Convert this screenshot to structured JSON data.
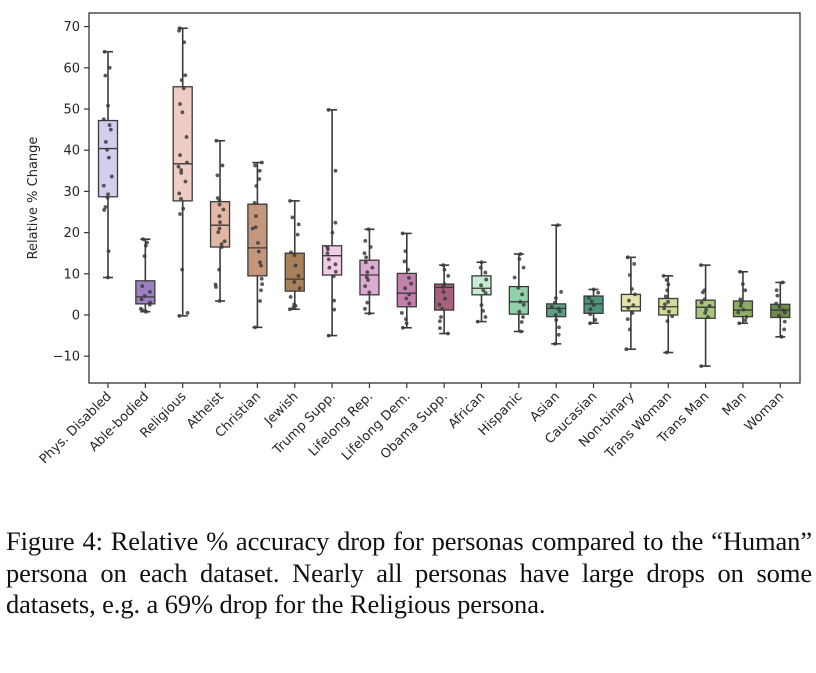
{
  "caption": "Figure 4: Relative % accuracy drop for personas compared to the “Human” persona on each dataset. Nearly all personas have large drops on some datasets, e.g. a 69% drop for the Religious persona.",
  "chart_data": {
    "type": "box",
    "title": "",
    "xlabel": "",
    "ylabel": "Relative % Change",
    "ylim": [
      -16.5,
      73
    ],
    "yticks": [
      -10,
      0,
      10,
      20,
      30,
      40,
      50,
      60,
      70
    ],
    "grid": false,
    "legend": "none",
    "categories": [
      "Phys. Disabled",
      "Able-bodied",
      "Religious",
      "Atheist",
      "Christian",
      "Jewish",
      "Trump Supp.",
      "Lifelong Rep.",
      "Lifelong Dem.",
      "Obama Supp.",
      "African",
      "Hispanic",
      "Asian",
      "Caucasian",
      "Non-binary",
      "Trans Woman",
      "Trans Man",
      "Man",
      "Woman"
    ],
    "boxes": [
      {
        "name": "Phys. Disabled",
        "min": 9.1,
        "q1": 28.7,
        "median": 40.4,
        "q3": 47.2,
        "max": 63.9,
        "color": "#d4cdee",
        "points": [
          9.1,
          15.5,
          25.5,
          26.2,
          28.5,
          29.3,
          31.4,
          33.6,
          38.2,
          40.1,
          42.0,
          45.0,
          46.1,
          47.5,
          50.8,
          58.1,
          60.0,
          63.9
        ]
      },
      {
        "name": "Able-bodied",
        "min": 0.8,
        "q1": 2.7,
        "median": 4.4,
        "q3": 8.3,
        "max": 18.4,
        "color": "#9e7fc0",
        "points": [
          0.8,
          1.0,
          1.2,
          1.5,
          2.5,
          3.0,
          3.8,
          4.6,
          5.6,
          7.0,
          14.3,
          16.8,
          17.6,
          18.4
        ]
      },
      {
        "name": "Religious",
        "min": -0.2,
        "q1": 27.7,
        "median": 36.7,
        "q3": 55.4,
        "max": 69.6,
        "color": "#f0cdc4",
        "points": [
          -0.2,
          0.5,
          11.0,
          24.5,
          25.8,
          28.2,
          29.5,
          32.4,
          34.5,
          35.2,
          36.0,
          37.0,
          38.8,
          43.2,
          49.2,
          51.2,
          55.0,
          57.0,
          58.2,
          66.2,
          69.0,
          69.6
        ]
      },
      {
        "name": "Atheist",
        "min": 3.4,
        "q1": 16.5,
        "median": 21.8,
        "q3": 27.5,
        "max": 42.3,
        "color": "#e3b7a3",
        "points": [
          3.4,
          6.8,
          7.4,
          11.0,
          16.5,
          17.2,
          17.9,
          20.1,
          21.0,
          22.5,
          24.0,
          25.6,
          26.8,
          27.8,
          28.4,
          33.9,
          36.3,
          42.3
        ]
      },
      {
        "name": "Christian",
        "min": -3.0,
        "q1": 9.5,
        "median": 16.3,
        "q3": 26.9,
        "max": 37.0,
        "color": "#c4977d",
        "points": [
          -3.0,
          3.4,
          6.0,
          7.5,
          8.8,
          12.0,
          12.8,
          15.4,
          17.5,
          21.0,
          21.3,
          24.0,
          27.2,
          31.3,
          33.0,
          35.0,
          36.3,
          37.0
        ]
      },
      {
        "name": "Jewish",
        "min": 1.4,
        "q1": 5.8,
        "median": 8.7,
        "q3": 15.0,
        "max": 27.7,
        "color": "#a8815a",
        "points": [
          1.4,
          1.8,
          2.2,
          2.6,
          4.4,
          6.5,
          8.0,
          9.5,
          12.0,
          14.5,
          15.2,
          19.5,
          22.0,
          23.7,
          27.7
        ]
      },
      {
        "name": "Trump Supp.",
        "min": -5.0,
        "q1": 9.7,
        "median": 14.4,
        "q3": 16.8,
        "max": 49.8,
        "color": "#f2cbe7",
        "points": [
          -5.0,
          1.3,
          3.5,
          9.4,
          10.5,
          11.5,
          12.3,
          13.5,
          15.0,
          16.0,
          16.5,
          20.0,
          22.4,
          35.0,
          49.8
        ]
      },
      {
        "name": "Lifelong Rep.",
        "min": 0.4,
        "q1": 4.9,
        "median": 9.7,
        "q3": 13.3,
        "max": 20.8,
        "color": "#ddaad2",
        "points": [
          0.4,
          1.5,
          3.0,
          5.5,
          7.0,
          8.5,
          9.2,
          10.4,
          11.5,
          12.8,
          14.0,
          15.0,
          16.5,
          18.0,
          20.8
        ]
      },
      {
        "name": "Lifelong Dem.",
        "min": -3.1,
        "q1": 2.0,
        "median": 5.3,
        "q3": 10.1,
        "max": 19.8,
        "color": "#c380ac",
        "points": [
          -3.1,
          -2.0,
          -1.0,
          0.5,
          2.8,
          4.0,
          5.0,
          6.5,
          7.6,
          9.0,
          11.0,
          13.0,
          15.5,
          19.8
        ]
      },
      {
        "name": "Obama Supp.",
        "min": -4.5,
        "q1": 1.2,
        "median": 6.7,
        "q3": 7.5,
        "max": 12.1,
        "color": "#a8607f",
        "points": [
          -4.5,
          -3.2,
          -1.5,
          -0.5,
          1.5,
          2.5,
          4.0,
          5.6,
          6.8,
          7.5,
          9.5,
          11.0,
          12.1
        ]
      },
      {
        "name": "African",
        "min": -1.6,
        "q1": 4.9,
        "median": 6.5,
        "q3": 9.5,
        "max": 12.8,
        "color": "#c6edd3",
        "points": [
          -1.6,
          -0.5,
          1.0,
          2.4,
          5.3,
          6.0,
          7.2,
          8.6,
          10.3,
          11.5,
          12.8
        ]
      },
      {
        "name": "Hispanic",
        "min": -4.0,
        "q1": 0.2,
        "median": 3.2,
        "q3": 6.9,
        "max": 14.8,
        "color": "#90d1a9",
        "points": [
          -4.0,
          -1.7,
          -0.5,
          0.8,
          2.5,
          3.2,
          5.0,
          6.6,
          9.1,
          11.5,
          13.6,
          14.8
        ]
      },
      {
        "name": "Asian",
        "min": -7.0,
        "q1": -0.4,
        "median": 1.6,
        "q3": 2.7,
        "max": 21.8,
        "color": "#5c9f81",
        "points": [
          -7.0,
          -4.8,
          -3.0,
          -1.2,
          0.0,
          0.9,
          1.5,
          2.0,
          3.0,
          4.1,
          5.6,
          21.8
        ]
      },
      {
        "name": "Caucasian",
        "min": -2.0,
        "q1": 0.4,
        "median": 2.7,
        "q3": 4.6,
        "max": 6.2,
        "color": "#4c9579",
        "points": [
          -2.0,
          -1.2,
          0.2,
          1.4,
          2.4,
          3.3,
          4.2,
          5.4,
          6.2
        ]
      },
      {
        "name": "Non-binary",
        "min": -8.3,
        "q1": 1.0,
        "median": 2.0,
        "q3": 5.0,
        "max": 14.0,
        "color": "#e4e3ae",
        "points": [
          -8.3,
          -3.5,
          -1.0,
          0.5,
          1.7,
          2.4,
          3.5,
          5.0,
          6.3,
          9.7,
          12.4,
          14.0
        ]
      },
      {
        "name": "Trans Woman",
        "min": -9.1,
        "q1": 0.0,
        "median": 2.0,
        "q3": 4.0,
        "max": 9.5,
        "color": "#d3d898",
        "points": [
          -9.1,
          -1.5,
          -0.3,
          0.8,
          1.6,
          2.6,
          3.2,
          4.5,
          6.0,
          7.4,
          8.5,
          9.5
        ]
      },
      {
        "name": "Trans Man",
        "min": -12.4,
        "q1": -0.8,
        "median": 1.9,
        "q3": 3.6,
        "max": 12.1,
        "color": "#a8c77a",
        "points": [
          -12.4,
          -0.5,
          0.5,
          1.3,
          2.2,
          3.0,
          3.8,
          5.5,
          6.0,
          12.1
        ]
      },
      {
        "name": "Man",
        "min": -2.0,
        "q1": -0.4,
        "median": 1.2,
        "q3": 3.4,
        "max": 10.5,
        "color": "#8bad60",
        "points": [
          -2.0,
          -1.3,
          -0.5,
          0.6,
          1.3,
          2.2,
          3.0,
          3.8,
          6.0,
          7.5,
          10.5
        ]
      },
      {
        "name": "Woman",
        "min": -5.3,
        "q1": -0.6,
        "median": 1.2,
        "q3": 2.6,
        "max": 7.9,
        "color": "#6e8c4b",
        "points": [
          -5.3,
          -3.5,
          -1.6,
          -0.2,
          0.6,
          1.2,
          2.0,
          2.8,
          4.7,
          6.0,
          7.9
        ]
      }
    ]
  }
}
